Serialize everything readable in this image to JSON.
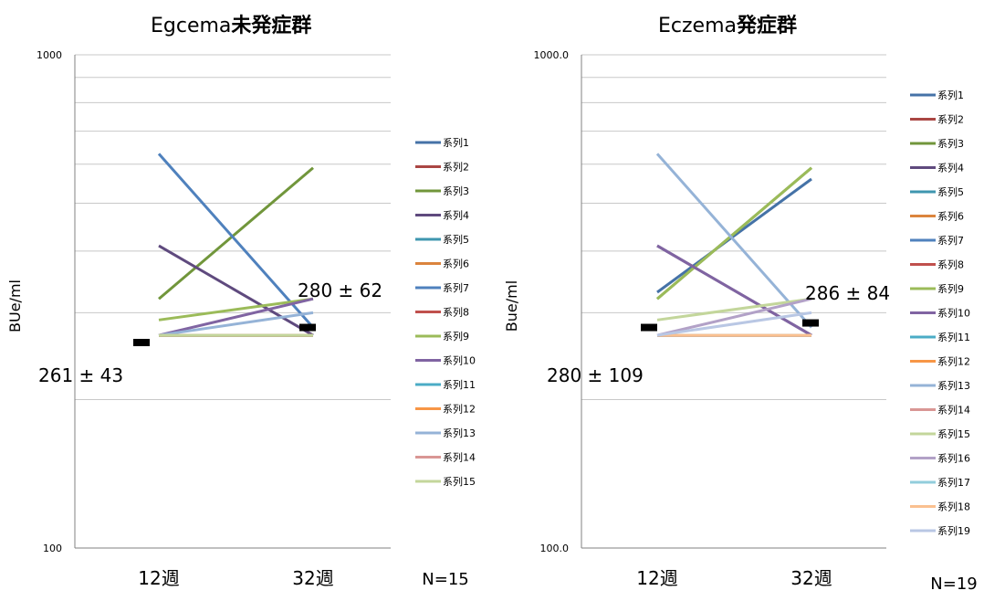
{
  "chart_data": [
    {
      "type": "line",
      "title_prefix": "Egcema",
      "title_bold": "未発症群",
      "ylabel": "BUe/ml",
      "yscale": "log",
      "ylim": [
        100,
        1000
      ],
      "ytick_labels": [
        "1000",
        "100"
      ],
      "categories": [
        "12週",
        "32週"
      ],
      "n_label": "N=15",
      "annotations": [
        "261 ± 43",
        "280 ± 62"
      ],
      "means": [
        261,
        280
      ],
      "series": [
        {
          "name": "系列1",
          "color": "#4572A7",
          "values": [
            270,
            270
          ]
        },
        {
          "name": "系列2",
          "color": "#AA4643",
          "values": [
            270,
            270
          ]
        },
        {
          "name": "系列3",
          "color": "#71963B",
          "values": [
            320,
            590
          ]
        },
        {
          "name": "系列4",
          "color": "#5F4A7E",
          "values": [
            410,
            270
          ]
        },
        {
          "name": "系列5",
          "color": "#3E96AF",
          "values": [
            270,
            270
          ]
        },
        {
          "name": "系列6",
          "color": "#DB843D",
          "values": [
            270,
            270
          ]
        },
        {
          "name": "系列7",
          "color": "#4F81BD",
          "values": [
            630,
            280
          ]
        },
        {
          "name": "系列8",
          "color": "#C0504D",
          "values": [
            270,
            270
          ]
        },
        {
          "name": "系列9",
          "color": "#9BBB59",
          "values": [
            290,
            320
          ]
        },
        {
          "name": "系列10",
          "color": "#8064A2",
          "values": [
            270,
            320
          ]
        },
        {
          "name": "系列11",
          "color": "#4BACC6",
          "values": [
            270,
            270
          ]
        },
        {
          "name": "系列12",
          "color": "#F79646",
          "values": [
            270,
            270
          ]
        },
        {
          "name": "系列13",
          "color": "#95B3D7",
          "values": [
            270,
            300
          ]
        },
        {
          "name": "系列14",
          "color": "#D99694",
          "values": [
            270,
            270
          ]
        },
        {
          "name": "系列15",
          "color": "#C3D69B",
          "values": [
            270,
            270
          ]
        }
      ]
    },
    {
      "type": "line",
      "title_prefix": "Eczema",
      "title_bold": "発症群",
      "ylabel": "Bue/ml",
      "yscale": "log",
      "ylim": [
        100,
        1000
      ],
      "ytick_labels": [
        "1000.0",
        "100.0"
      ],
      "categories": [
        "12週",
        "32週"
      ],
      "n_label": "N=19",
      "annotations": [
        "280 ± 109",
        "286 ± 84"
      ],
      "means": [
        280,
        286
      ],
      "series": [
        {
          "name": "系列1",
          "color": "#4572A7",
          "values": [
            330,
            560
          ]
        },
        {
          "name": "系列2",
          "color": "#AA4643",
          "values": [
            270,
            270
          ]
        },
        {
          "name": "系列3",
          "color": "#71963B",
          "values": [
            320,
            590
          ]
        },
        {
          "name": "系列4",
          "color": "#5F4A7E",
          "values": [
            410,
            270
          ]
        },
        {
          "name": "系列5",
          "color": "#3E96AF",
          "values": [
            270,
            270
          ]
        },
        {
          "name": "系列6",
          "color": "#DB843D",
          "values": [
            270,
            270
          ]
        },
        {
          "name": "系列7",
          "color": "#4F81BD",
          "values": [
            270,
            270
          ]
        },
        {
          "name": "系列8",
          "color": "#C0504D",
          "values": [
            270,
            270
          ]
        },
        {
          "name": "系列9",
          "color": "#9BBB59",
          "values": [
            320,
            590
          ]
        },
        {
          "name": "系列10",
          "color": "#8064A2",
          "values": [
            410,
            270
          ]
        },
        {
          "name": "系列11",
          "color": "#4BACC6",
          "values": [
            270,
            270
          ]
        },
        {
          "name": "系列12",
          "color": "#F79646",
          "values": [
            270,
            270
          ]
        },
        {
          "name": "系列13",
          "color": "#95B3D7",
          "values": [
            630,
            280
          ]
        },
        {
          "name": "系列14",
          "color": "#D99694",
          "values": [
            270,
            270
          ]
        },
        {
          "name": "系列15",
          "color": "#C3D69B",
          "values": [
            290,
            320
          ]
        },
        {
          "name": "系列16",
          "color": "#B2A1C7",
          "values": [
            270,
            320
          ]
        },
        {
          "name": "系列17",
          "color": "#92CDDC",
          "values": [
            270,
            270
          ]
        },
        {
          "name": "系列18",
          "color": "#FAC090",
          "values": [
            270,
            270
          ]
        },
        {
          "name": "系列19",
          "color": "#B9C7E4",
          "values": [
            270,
            300
          ]
        }
      ]
    }
  ]
}
